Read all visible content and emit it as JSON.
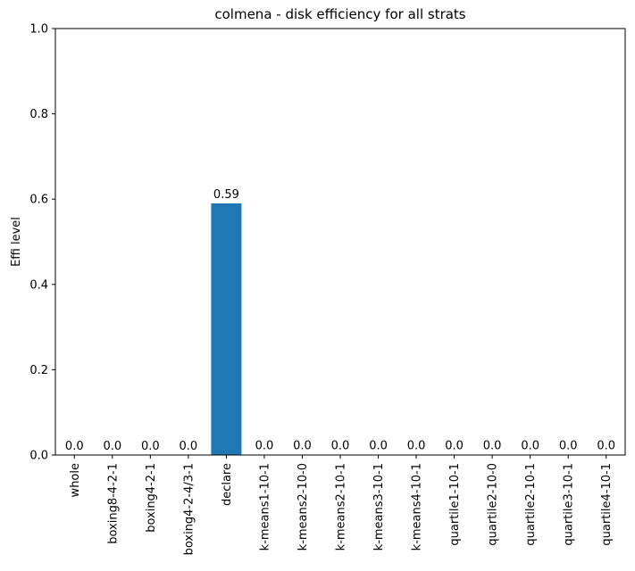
{
  "chart_data": {
    "type": "bar",
    "title": "colmena - disk efficiency for all strats",
    "xlabel": "",
    "ylabel": "Effi level",
    "ylim": [
      0,
      1
    ],
    "yticks": [
      "0.0",
      "0.2",
      "0.4",
      "0.6",
      "0.8",
      "1.0"
    ],
    "categories": [
      "whole",
      "boxing8-4-2-1",
      "boxing4-2-1",
      "boxing4-2-4/3-1",
      "declare",
      "k-means1-10-1",
      "k-means2-10-0",
      "k-means2-10-1",
      "k-means3-10-1",
      "k-means4-10-1",
      "quartile1-10-1",
      "quartile2-10-0",
      "quartile2-10-1",
      "quartile3-10-1",
      "quartile4-10-1"
    ],
    "values": [
      0.0,
      0.0,
      0.0,
      0.0,
      0.59,
      0.001,
      0.001,
      0.001,
      0.001,
      0.001,
      0.001,
      0.001,
      0.001,
      0.001,
      0.001
    ],
    "data_labels": [
      "0.0",
      "0.0",
      "0.0",
      "0.0",
      "0.59",
      "0.0",
      "0.0",
      "0.0",
      "0.0",
      "0.0",
      "0.0",
      "0.0",
      "0.0",
      "0.0",
      "0.0"
    ],
    "bar_color": "#1f77b4",
    "grid": false,
    "legend": false
  }
}
